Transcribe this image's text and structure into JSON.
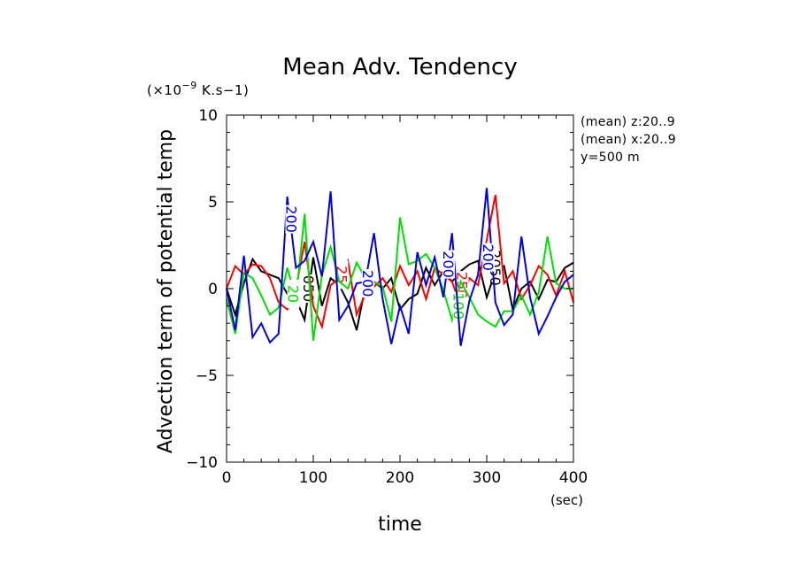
{
  "chart_data": {
    "type": "line",
    "title": "Mean Adv. Tendency",
    "unit_label": "(×10",
    "unit_exponent": "−9",
    "unit_suffix": " K.s−1)",
    "xlabel": "time",
    "xunit": "(sec)",
    "ylabel": "Advection term of potential temp",
    "xlim": [
      0,
      400
    ],
    "ylim": [
      -10,
      10
    ],
    "xticks": [
      "0",
      "100",
      "200",
      "300",
      "400"
    ],
    "yticks": [
      "10",
      "5",
      "0",
      "−5",
      "−10"
    ],
    "notes": [
      "(mean) z:20..9",
      "(mean) x:20..9",
      "y=500  m"
    ],
    "x": [
      0,
      10,
      20,
      30,
      40,
      50,
      60,
      70,
      80,
      90,
      100,
      110,
      120,
      130,
      140,
      150,
      160,
      170,
      180,
      190,
      200,
      210,
      220,
      230,
      240,
      250,
      260,
      270,
      280,
      290,
      300,
      310,
      320,
      330,
      340,
      350,
      360,
      370,
      380,
      390,
      400
    ],
    "series": [
      {
        "color": "#000000",
        "values": [
          0.0,
          -1.5,
          0.3,
          1.7,
          1.0,
          0.8,
          0.6,
          -0.3,
          -0.6,
          -1.8,
          1.8,
          -1.0,
          0.6,
          0.2,
          -0.8,
          -2.4,
          0.1,
          0.4,
          0.0,
          0.6,
          -1.2,
          -0.6,
          -0.3,
          1.2,
          0.2,
          1.0,
          0.4,
          1.0,
          1.4,
          1.6,
          -0.5,
          1.0,
          1.3,
          -1.2,
          0.0,
          0.4,
          -0.6,
          0.5,
          0.4,
          1.2,
          1.5
        ],
        "labels": [
          {
            "text": "050",
            "x": 93,
            "y": 0.0
          },
          {
            "text": "2050",
            "x": 308,
            "y": 1.2
          }
        ]
      },
      {
        "color": "#ff0000",
        "values": [
          0.0,
          1.3,
          0.8,
          1.4,
          1.3,
          0.6,
          -0.8,
          -1.2,
          0.0,
          2.7,
          -1.0,
          -2.2,
          0.2,
          0.6,
          1.6,
          -1.5,
          -0.3,
          0.1,
          0.6,
          -0.2,
          1.3,
          0.2,
          1.0,
          -0.6,
          1.2,
          0.8,
          0.4,
          -1.0,
          0.6,
          0.2,
          2.8,
          5.4,
          0.3,
          1.0,
          -0.6,
          0.2,
          1.3,
          0.8,
          -0.4,
          1.0,
          -0.8
        ],
        "labels": [
          {
            "text": "25",
            "x": 131,
            "y": 0.8
          },
          {
            "text": "250",
            "x": 270,
            "y": 0.2
          }
        ]
      },
      {
        "color": "#00e000",
        "values": [
          -0.6,
          -2.6,
          0.9,
          0.6,
          -0.4,
          -1.5,
          -1.1,
          1.2,
          -0.6,
          4.3,
          -3.0,
          0.8,
          2.4,
          0.4,
          0.0,
          1.5,
          0.6,
          0.4,
          0.1,
          -1.9,
          4.1,
          1.4,
          1.6,
          2.0,
          1.2,
          -0.1,
          -1.8,
          0.4,
          -0.5,
          -1.5,
          -1.9,
          -2.2,
          -1.3,
          -1.3,
          -0.4,
          -1.5,
          -0.2,
          3.0,
          0.3,
          0.0,
          0.0
        ],
        "labels": [
          {
            "text": "20",
            "x": 75,
            "y": -0.3
          },
          {
            "text": "100",
            "x": 266,
            "y": -1.0
          }
        ]
      },
      {
        "color": "#0000e0",
        "values": [
          0.0,
          -2.4,
          1.9,
          -2.8,
          -2.0,
          -3.1,
          -2.6,
          5.3,
          1.2,
          1.6,
          2.7,
          0.7,
          5.6,
          -1.8,
          -1.0,
          0.3,
          0.4,
          3.2,
          -0.6,
          -3.2,
          -1.0,
          -2.6,
          2.1,
          0.2,
          1.8,
          -0.5,
          3.2,
          -3.3,
          -0.7,
          0.8,
          5.8,
          -0.8,
          -2.1,
          -1.5,
          3.0,
          -0.5,
          -2.6,
          -1.6,
          -0.5,
          0.4,
          0.8
        ],
        "labels": [
          {
            "text": "200",
            "x": 73,
            "y": 4.0
          },
          {
            "text": "200",
            "x": 161,
            "y": 0.3
          },
          {
            "text": "200",
            "x": 254,
            "y": 1.4
          },
          {
            "text": "200",
            "x": 300,
            "y": 1.8
          }
        ]
      }
    ]
  }
}
